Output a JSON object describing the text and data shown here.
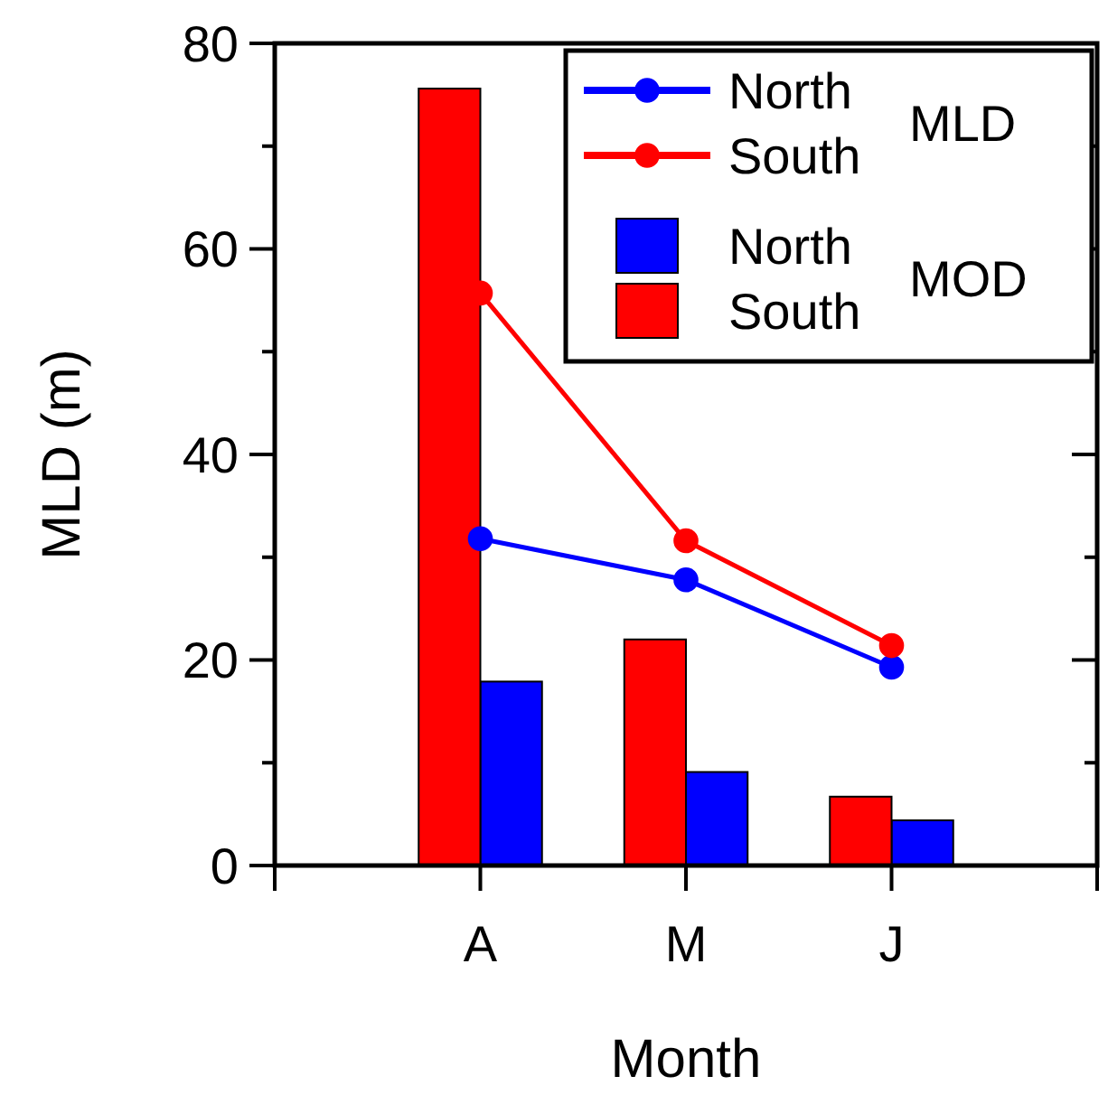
{
  "chart_data": {
    "type": "bar",
    "xlabel": "Month",
    "ylabel": "MLD (m)",
    "categories": [
      "A",
      "M",
      "J"
    ],
    "ylim": [
      0,
      80
    ],
    "yticks": [
      0,
      {
        "value": 10,
        "label": null
      },
      20,
      {
        "value": 30,
        "label": null
      },
      40,
      {
        "value": 50,
        "label": null
      },
      60,
      {
        "value": 70,
        "label": null
      },
      80
    ],
    "legend": "top right",
    "marker": "circle",
    "annotations": [
      "MLD",
      "MOD"
    ],
    "series": [
      {
        "name": "North",
        "type": "line",
        "color": "#0000ff",
        "values": [
          31.8,
          27.8,
          19.3
        ]
      },
      {
        "name": "South",
        "type": "line",
        "color": "#ff0000",
        "values": [
          55.7,
          31.6,
          21.4
        ]
      },
      {
        "name": "North",
        "type": "bar",
        "color": "#0000ff",
        "values": [
          17.9,
          9.1,
          4.4
        ]
      },
      {
        "name": "South",
        "type": "bar",
        "color": "#ff0000",
        "values": [
          75.6,
          22.0,
          6.7
        ]
      }
    ]
  }
}
